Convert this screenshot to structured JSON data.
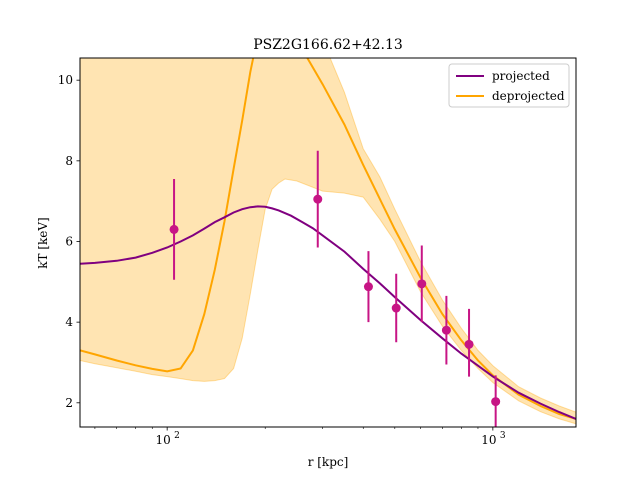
{
  "chart_data": {
    "type": "line",
    "title": "PSZ2G166.62+42.13",
    "xlabel": "r [kpc]",
    "ylabel": "kT [keV]",
    "xscale": "log",
    "xlim": [
      54,
      1800
    ],
    "ylim": [
      1.4,
      10.55
    ],
    "xticks": [
      {
        "value": 100,
        "label": "10",
        "exp": "2"
      },
      {
        "value": 1000,
        "label": "10",
        "exp": "3"
      }
    ],
    "yticks": [
      {
        "value": 2,
        "label": "2"
      },
      {
        "value": 4,
        "label": "4"
      },
      {
        "value": 6,
        "label": "6"
      },
      {
        "value": 8,
        "label": "8"
      },
      {
        "value": 10,
        "label": "10"
      }
    ],
    "legend_position": "top-right",
    "colors": {
      "projected": "#800080",
      "deprojected": "#ffa500",
      "band": "#ffa500",
      "points": "#c71585"
    },
    "series": [
      {
        "name": "projected",
        "x": [
          54,
          60,
          70,
          80,
          90,
          100,
          110,
          120,
          130,
          140,
          150,
          160,
          170,
          180,
          190,
          200,
          210,
          220,
          240,
          260,
          280,
          300,
          350,
          400,
          450,
          500,
          600,
          700,
          800,
          900,
          1000,
          1200,
          1400,
          1600,
          1800
        ],
        "y": [
          5.45,
          5.47,
          5.52,
          5.6,
          5.72,
          5.85,
          6.0,
          6.15,
          6.32,
          6.48,
          6.6,
          6.72,
          6.8,
          6.85,
          6.87,
          6.86,
          6.82,
          6.77,
          6.64,
          6.48,
          6.33,
          6.15,
          5.75,
          5.32,
          4.96,
          4.62,
          4.05,
          3.6,
          3.22,
          2.92,
          2.65,
          2.25,
          1.98,
          1.77,
          1.6
        ]
      },
      {
        "name": "deprojected",
        "x": [
          54,
          60,
          70,
          80,
          90,
          100,
          110,
          120,
          130,
          140,
          150,
          160,
          170,
          180,
          200,
          220,
          250,
          300,
          350,
          400,
          450,
          500,
          600,
          700,
          800,
          900,
          1000,
          1200,
          1400,
          1600,
          1800
        ],
        "y": [
          3.3,
          3.2,
          3.05,
          2.93,
          2.84,
          2.78,
          2.85,
          3.3,
          4.2,
          5.3,
          6.5,
          7.8,
          9.0,
          10.2,
          12.0,
          11.6,
          11.0,
          9.9,
          8.9,
          7.9,
          7.05,
          6.3,
          5.1,
          4.2,
          3.55,
          3.05,
          2.68,
          2.2,
          1.92,
          1.72,
          1.6
        ]
      }
    ],
    "band": {
      "name": "deprojected uncertainty",
      "x": [
        54,
        60,
        70,
        80,
        90,
        100,
        110,
        120,
        130,
        140,
        150,
        160,
        170,
        180,
        190,
        200,
        210,
        220,
        230,
        250,
        300,
        350,
        400,
        450,
        500,
        600,
        700,
        800,
        900,
        1000,
        1200,
        1400,
        1600,
        1800
      ],
      "upper": [
        12,
        12,
        12,
        12,
        12,
        12,
        12,
        12,
        12,
        12,
        12,
        12,
        12,
        12,
        12,
        12,
        12,
        12,
        12,
        12,
        11,
        9.7,
        8.3,
        7.6,
        6.8,
        5.5,
        4.55,
        3.85,
        3.3,
        2.92,
        2.4,
        2.12,
        1.92,
        1.77
      ],
      "lower": [
        3.05,
        2.97,
        2.87,
        2.78,
        2.7,
        2.65,
        2.6,
        2.55,
        2.53,
        2.55,
        2.6,
        2.85,
        3.6,
        4.7,
        5.8,
        6.8,
        7.3,
        7.45,
        7.55,
        7.5,
        7.25,
        7.2,
        7.1,
        6.55,
        6.0,
        4.75,
        3.9,
        3.3,
        2.85,
        2.5,
        2.05,
        1.78,
        1.6,
        1.48
      ]
    },
    "points": {
      "x": [
        105,
        290,
        415,
        505,
        605,
        720,
        845,
        1020
      ],
      "y": [
        6.3,
        7.05,
        4.88,
        4.35,
        4.95,
        3.8,
        3.45,
        2.03
      ],
      "yerr_low": [
        1.25,
        1.2,
        0.88,
        0.85,
        0.95,
        0.85,
        0.8,
        0.7
      ],
      "yerr_high": [
        1.25,
        1.2,
        0.88,
        0.85,
        0.95,
        0.85,
        0.88,
        0.65
      ]
    }
  }
}
